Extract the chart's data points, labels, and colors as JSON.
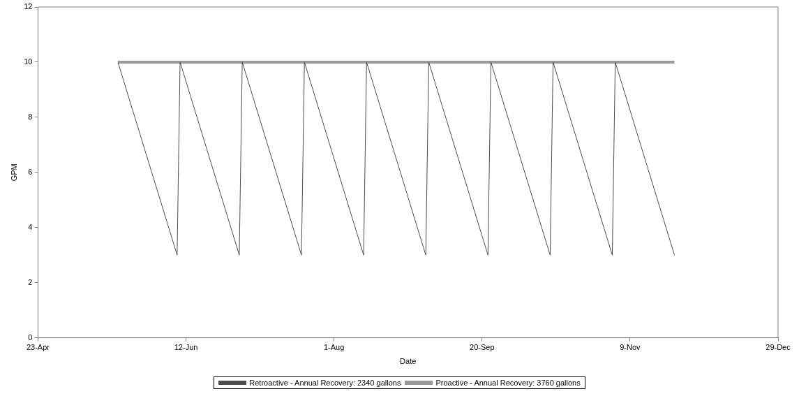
{
  "chart_data": {
    "type": "line",
    "xlabel": "Date",
    "ylabel": "GPM",
    "xlim": [
      "--04-23",
      "--12-29"
    ],
    "xticks": [
      {
        "value": "--04-23",
        "label": "23-Apr"
      },
      {
        "value": "--06-12",
        "label": "12-Jun"
      },
      {
        "value": "--08-01",
        "label": "1-Aug"
      },
      {
        "value": "--09-20",
        "label": "20-Sep"
      },
      {
        "value": "--11-09",
        "label": "9-Nov"
      },
      {
        "value": "--12-29",
        "label": "29-Dec"
      }
    ],
    "ylim": [
      0,
      12
    ],
    "yticks": [
      0,
      2,
      4,
      6,
      8,
      10,
      12
    ],
    "grid": false,
    "legend": "bottom",
    "marker": "none",
    "line_style": "solid",
    "series": [
      {
        "name": "Retroactive - Annual Recovery: 2340 gallons",
        "color": "#4d4d4d",
        "x": [
          "--05-20",
          "--06-09",
          "--06-10",
          "--06-30",
          "--07-01",
          "--07-21",
          "--07-22",
          "--08-11",
          "--08-12",
          "--09-01",
          "--09-02",
          "--09-22",
          "--09-23",
          "--10-13",
          "--10-14",
          "--11-03",
          "--11-04",
          "--11-24"
        ],
        "values": [
          10,
          3,
          10,
          3,
          10,
          3,
          10,
          3,
          10,
          3,
          10,
          3,
          10,
          3,
          10,
          3,
          10,
          3
        ]
      },
      {
        "name": "Proactive - Annual Recovery: 3760 gallons",
        "color": "#999999",
        "x": [
          "--05-20",
          "--11-24"
        ],
        "values": [
          10,
          10
        ]
      }
    ]
  }
}
